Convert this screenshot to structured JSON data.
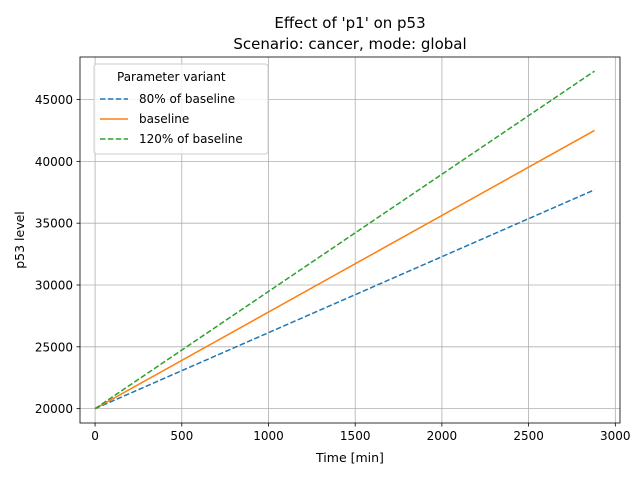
{
  "chart_data": {
    "type": "line",
    "title": "Effect of 'p1' on p53",
    "subtitle": "Scenario: cancer, mode: global",
    "xlabel": "Time [min]",
    "ylabel": "p53 level",
    "xlim": [
      -87,
      3027
    ],
    "ylim": [
      18840,
      48440
    ],
    "xticks": [
      0,
      500,
      1000,
      1500,
      2000,
      2500,
      3000
    ],
    "yticks": [
      20000,
      25000,
      30000,
      35000,
      40000,
      45000
    ],
    "grid": true,
    "legend": {
      "title": "Parameter variant",
      "placement": "top-left"
    },
    "series": [
      {
        "name": "80% of baseline",
        "color": "#1f77b4",
        "dash": "dashed",
        "x": [
          0,
          2880
        ],
        "y": [
          20000,
          37700
        ]
      },
      {
        "name": "baseline",
        "color": "#ff7f0e",
        "dash": "solid",
        "x": [
          0,
          2880
        ],
        "y": [
          20000,
          42500
        ]
      },
      {
        "name": "120% of baseline",
        "color": "#2ca02c",
        "dash": "dashed",
        "x": [
          0,
          2880
        ],
        "y": [
          20000,
          47300
        ]
      }
    ]
  }
}
